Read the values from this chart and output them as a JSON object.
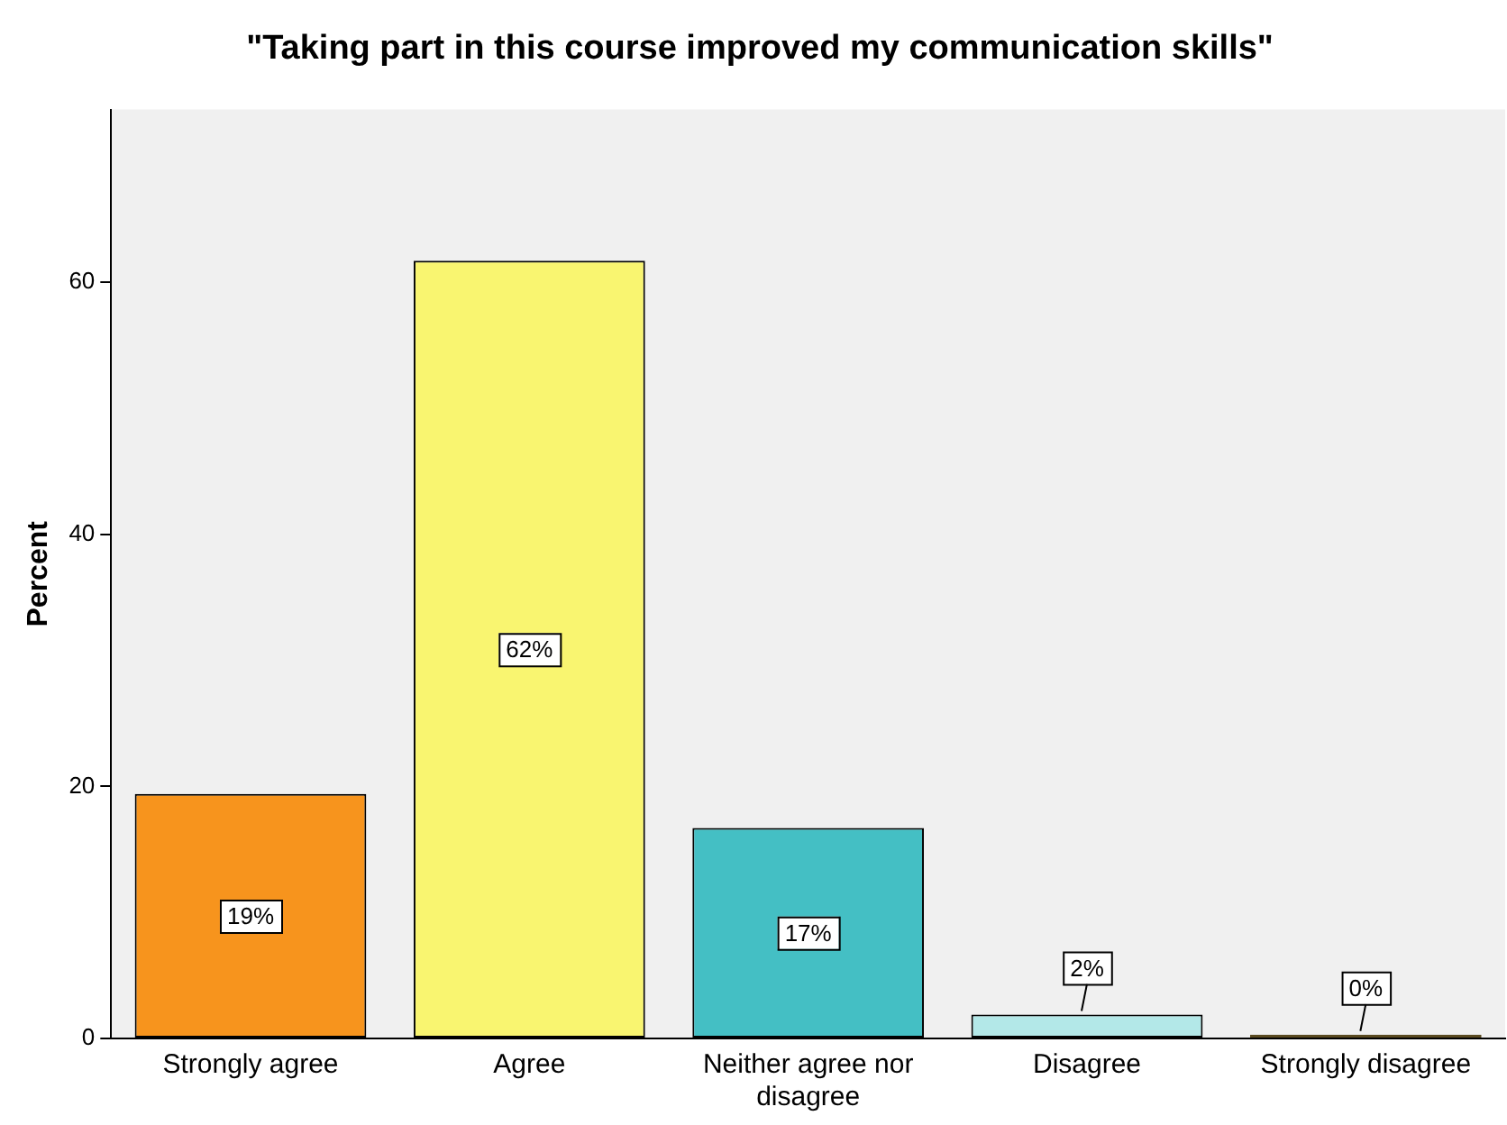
{
  "chart_data": {
    "type": "bar",
    "title": "\"Taking part in this course improved my communication skills\"",
    "ylabel": "Percent",
    "categories": [
      "Strongly agree",
      "Agree",
      "Neither agree nor disagree",
      "Disagree",
      "Strongly disagree"
    ],
    "values": [
      19.4,
      61.7,
      16.7,
      1.9,
      0.3
    ],
    "value_labels": [
      "19%",
      "62%",
      "17%",
      "2%",
      "0%"
    ],
    "colors": [
      "#f7941d",
      "#f9f570",
      "#44bfc4",
      "#b3e8e8",
      "#5a4a20"
    ],
    "ylim": [
      0,
      73.7
    ],
    "yticks": [
      0,
      20,
      40,
      60
    ],
    "grid": false,
    "legend": false
  }
}
